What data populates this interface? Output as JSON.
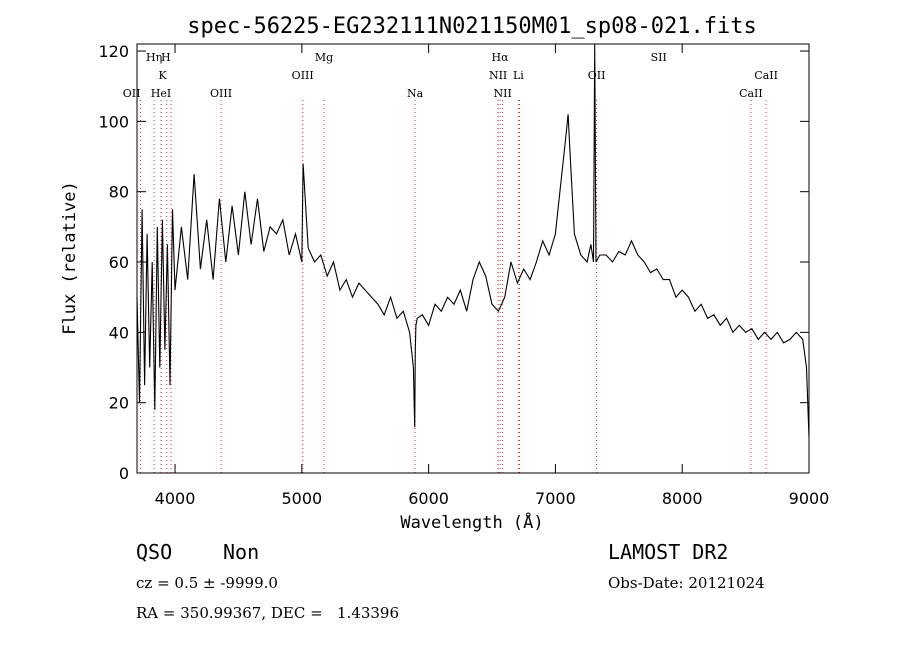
{
  "chart_data": {
    "type": "line",
    "title": "spec-56225-EG232111N021150M01_sp08-021.fits",
    "xlabel": "Wavelength (Å)",
    "ylabel": "Flux (relative)",
    "xlim": [
      3700,
      9000
    ],
    "ylim": [
      0,
      122
    ],
    "xticks": [
      4000,
      5000,
      6000,
      7000,
      8000,
      9000
    ],
    "yticks": [
      0,
      20,
      40,
      60,
      80,
      100,
      120
    ],
    "grid": false,
    "series": [
      {
        "x": [
          3700,
          3720,
          3740,
          3760,
          3780,
          3800,
          3820,
          3840,
          3860,
          3880,
          3900,
          3920,
          3940,
          3960,
          3980,
          4000,
          4050,
          4100,
          4150,
          4200,
          4250,
          4300,
          4350,
          4400,
          4450,
          4500,
          4550,
          4600,
          4650,
          4700,
          4750,
          4800,
          4850,
          4900,
          4950,
          5000,
          5010,
          5050,
          5100,
          5150,
          5200,
          5250,
          5300,
          5350,
          5400,
          5450,
          5500,
          5550,
          5600,
          5650,
          5700,
          5750,
          5800,
          5850,
          5880,
          5890,
          5895,
          5900,
          5910,
          5950,
          6000,
          6050,
          6100,
          6150,
          6200,
          6250,
          6300,
          6350,
          6400,
          6450,
          6500,
          6550,
          6600,
          6650,
          6700,
          6750,
          6800,
          6850,
          6900,
          6950,
          7000,
          7020,
          7050,
          7080,
          7100,
          7120,
          7150,
          7200,
          7250,
          7280,
          7300,
          7310,
          7320,
          7350,
          7400,
          7450,
          7500,
          7550,
          7600,
          7650,
          7700,
          7750,
          7800,
          7850,
          7900,
          7950,
          8000,
          8050,
          8100,
          8150,
          8200,
          8250,
          8300,
          8350,
          8400,
          8450,
          8500,
          8550,
          8600,
          8650,
          8700,
          8750,
          8800,
          8850,
          8900,
          8950,
          8980,
          9000
        ],
        "y": [
          50,
          20,
          75,
          25,
          68,
          30,
          60,
          18,
          70,
          30,
          72,
          35,
          65,
          25,
          75,
          52,
          70,
          55,
          85,
          58,
          72,
          55,
          78,
          60,
          76,
          62,
          80,
          65,
          78,
          63,
          70,
          68,
          72,
          62,
          68,
          60,
          88,
          64,
          60,
          62,
          56,
          60,
          52,
          55,
          50,
          54,
          52,
          50,
          48,
          45,
          50,
          44,
          46,
          40,
          30,
          13,
          35,
          42,
          44,
          45,
          42,
          48,
          46,
          50,
          48,
          52,
          46,
          55,
          60,
          56,
          48,
          46,
          50,
          60,
          54,
          58,
          55,
          60,
          66,
          62,
          68,
          75,
          85,
          95,
          102,
          88,
          68,
          62,
          60,
          65,
          60,
          122,
          60,
          62,
          62,
          60,
          63,
          62,
          66,
          62,
          60,
          57,
          58,
          55,
          55,
          50,
          52,
          50,
          46,
          48,
          44,
          45,
          42,
          44,
          40,
          42,
          40,
          41,
          38,
          40,
          38,
          40,
          37,
          38,
          40,
          38,
          30,
          10
        ]
      }
    ],
    "line_markers": [
      {
        "label": "OII",
        "x": 3727,
        "row": 3,
        "anchor": "end"
      },
      {
        "label": "Hη",
        "x": 3835,
        "row": 1,
        "anchor": "middle"
      },
      {
        "label": "H",
        "x": 3889,
        "row": 1,
        "anchor": "start"
      },
      {
        "label": "HeI",
        "x": 3889,
        "row": 3,
        "anchor": "middle"
      },
      {
        "label": "K",
        "x": 3934,
        "row": 2,
        "anchor": "end"
      },
      {
        "label": "",
        "x": 3969,
        "row": 0,
        "anchor": "middle"
      },
      {
        "label": "OIII",
        "x": 4363,
        "row": 3,
        "anchor": "middle"
      },
      {
        "label": "OIII",
        "x": 5007,
        "row": 2,
        "anchor": "middle"
      },
      {
        "label": "Mg",
        "x": 5175,
        "row": 1,
        "anchor": "middle"
      },
      {
        "label": "Na",
        "x": 5893,
        "row": 3,
        "anchor": "middle"
      },
      {
        "label": "Hα",
        "x": 6563,
        "row": 1,
        "anchor": "middle"
      },
      {
        "label": "NII",
        "x": 6548,
        "row": 2,
        "anchor": "middle"
      },
      {
        "label": "NII",
        "x": 6584,
        "row": 3,
        "anchor": "middle"
      },
      {
        "label": "Li",
        "x": 6708,
        "row": 2,
        "anchor": "middle"
      },
      {
        "label": "OII",
        "x": 7325,
        "row": 2,
        "anchor": "middle"
      },
      {
        "label": "SII",
        "x": 6717,
        "row": 1,
        "anchor": "middle",
        "display_x": 7815
      },
      {
        "label": "CaII",
        "x": 8542,
        "row": 3,
        "anchor": "middle"
      },
      {
        "label": "CaII",
        "x": 8662,
        "row": 2,
        "anchor": "middle"
      }
    ]
  },
  "info": {
    "class": "QSO",
    "subclass": "Non",
    "cz": "cz = 0.5 ± -9999.0",
    "coords": "RA = 350.99367, DEC =   1.43396",
    "survey": "LAMOST DR2",
    "obs_date": "Obs-Date: 20121024"
  }
}
